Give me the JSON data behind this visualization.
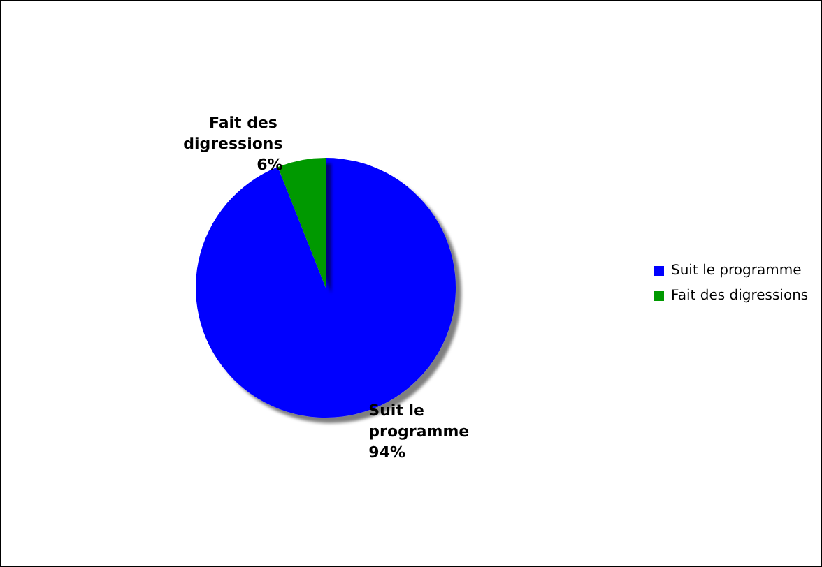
{
  "chart_data": {
    "type": "pie",
    "categories": [
      "Suit le programme",
      "Fait des digressions"
    ],
    "values": [
      94,
      6
    ],
    "colors": [
      "#0000ff",
      "#009900"
    ],
    "value_labels": [
      "94%",
      "6%"
    ],
    "legend": "right"
  }
}
